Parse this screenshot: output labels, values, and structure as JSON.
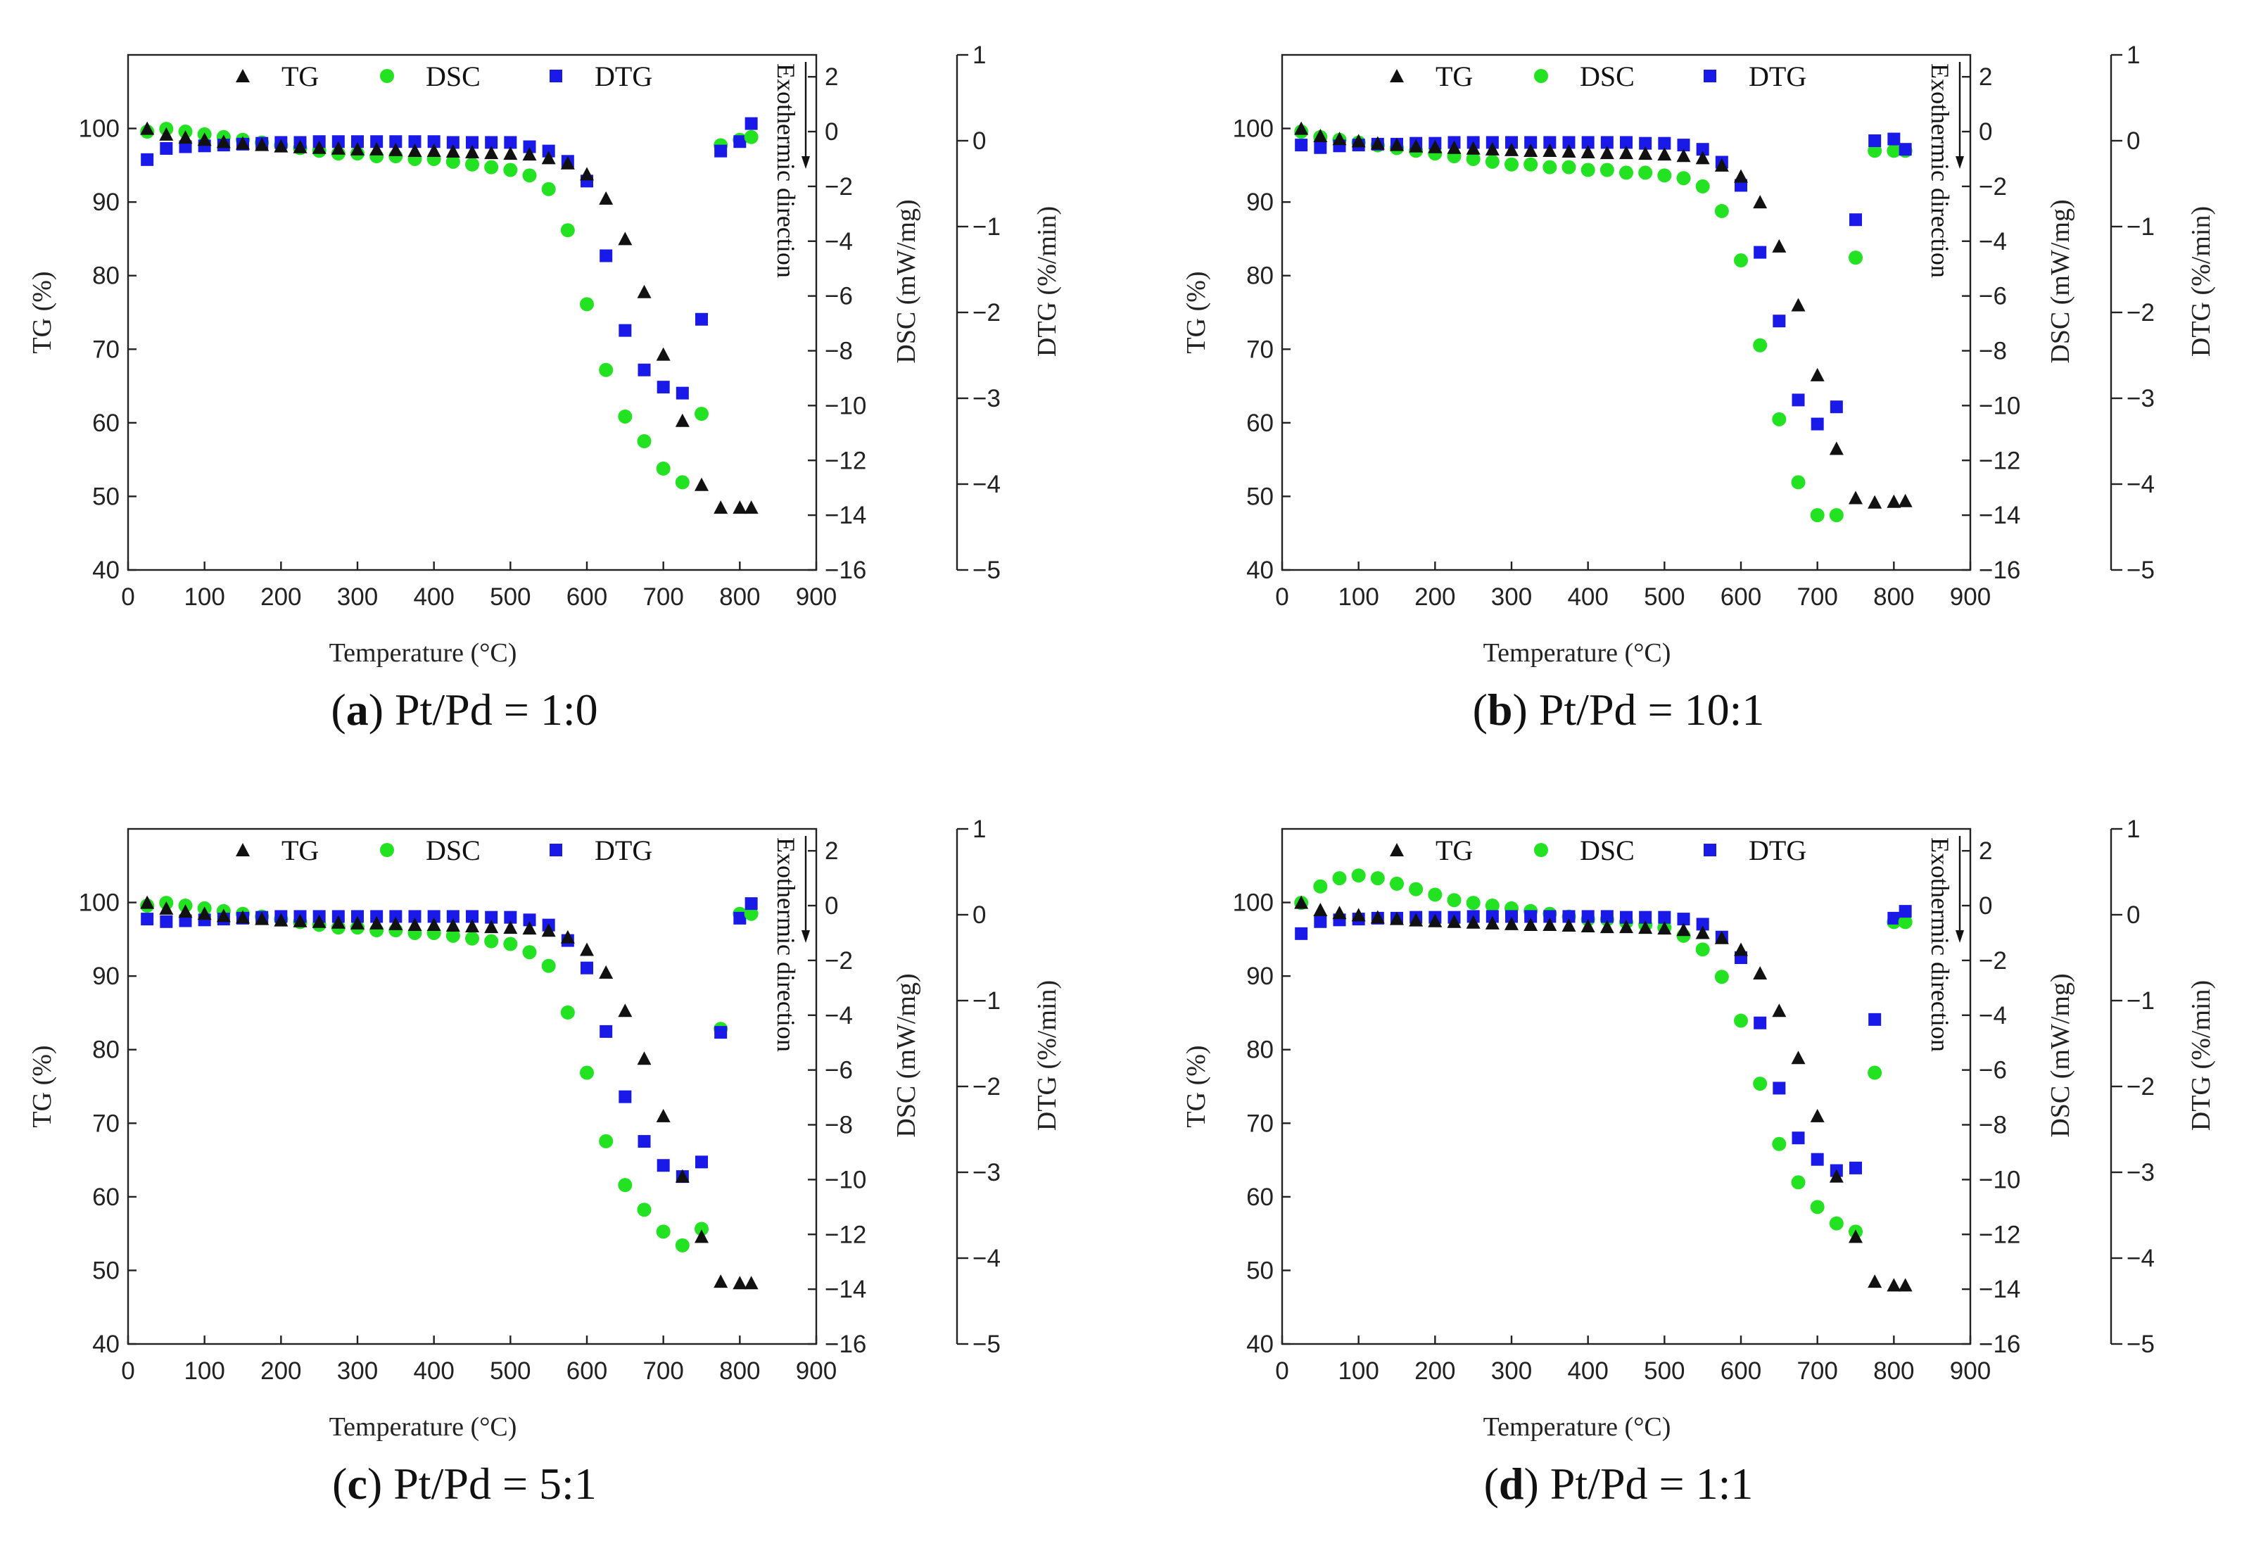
{
  "legend_labels": [
    "TG",
    "DSC",
    "DTG"
  ],
  "colors": {
    "TG": "#111111",
    "DSC": "#22e222",
    "DTG": "#1a1ae8"
  },
  "chart_data": [
    {
      "type": "scatter",
      "caption_letter": "a",
      "caption_text": " Pt/Pd = 1:0",
      "xlabel": "Temperature (°C)",
      "ylabel_left": "TG (%)",
      "ylabel_right1": "DSC (mW/mg)",
      "ylabel_right2": "DTG (%/min)",
      "annotation": "Exothermic direction",
      "xlim": [
        0,
        900
      ],
      "xticks": [
        0,
        100,
        200,
        300,
        400,
        500,
        600,
        700,
        800,
        900
      ],
      "tg_lim": [
        40,
        110
      ],
      "tg_ticks": [
        40,
        50,
        60,
        70,
        80,
        90,
        100
      ],
      "dsc_lim": [
        -16,
        2.8
      ],
      "dsc_ticks": [
        -16,
        -14,
        -12,
        -10,
        -8,
        -6,
        -4,
        -2,
        0,
        2
      ],
      "dtg_lim": [
        -5,
        1
      ],
      "dtg_ticks": [
        -5,
        -4,
        -3,
        -2,
        -1,
        0,
        1
      ],
      "x": [
        25,
        50,
        75,
        100,
        125,
        150,
        175,
        200,
        225,
        250,
        275,
        300,
        325,
        350,
        375,
        400,
        425,
        450,
        475,
        500,
        525,
        550,
        575,
        600,
        625,
        650,
        675,
        700,
        725,
        750,
        775,
        800,
        815
      ],
      "tg": [
        100,
        99.2,
        98.8,
        98.5,
        98.2,
        98,
        97.8,
        97.6,
        97.5,
        97.4,
        97.3,
        97.2,
        97.2,
        97.1,
        97,
        97,
        96.9,
        96.8,
        96.7,
        96.6,
        96.5,
        96,
        95.3,
        93.8,
        90.5,
        85,
        77.8,
        69.3,
        60.3,
        51.6,
        48.5,
        48.5,
        48.5
      ],
      "dsc": [
        0,
        0.1,
        0,
        -0.1,
        -0.2,
        -0.3,
        -0.4,
        -0.5,
        -0.6,
        -0.7,
        -0.8,
        -0.8,
        -0.9,
        -0.9,
        -1,
        -1,
        -1.1,
        -1.2,
        -1.3,
        -1.4,
        -1.6,
        -2.1,
        -3.6,
        -6.3,
        -8.7,
        -10.4,
        -11.3,
        -12.3,
        -12.8,
        -10.3,
        -0.5,
        -0.3,
        -0.2
      ],
      "dtg": [
        -0.22,
        -0.09,
        -0.07,
        -0.06,
        -0.05,
        -0.04,
        -0.03,
        -0.02,
        -0.02,
        -0.01,
        -0.01,
        -0.01,
        -0.01,
        -0.01,
        -0.01,
        -0.01,
        -0.02,
        -0.02,
        -0.02,
        -0.02,
        -0.07,
        -0.12,
        -0.24,
        -0.47,
        -1.34,
        -2.21,
        -2.67,
        -2.87,
        -2.94,
        -2.08,
        -0.12,
        -0.01,
        0.2
      ]
    },
    {
      "type": "scatter",
      "caption_letter": "b",
      "caption_text": " Pt/Pd = 10:1",
      "xlabel": "Temperature (°C)",
      "ylabel_left": "TG (%)",
      "ylabel_right1": "DSC (mW/mg)",
      "ylabel_right2": "DTG (%/min)",
      "annotation": "Exothermic direction",
      "xlim": [
        0,
        900
      ],
      "xticks": [
        0,
        100,
        200,
        300,
        400,
        500,
        600,
        700,
        800,
        900
      ],
      "tg_lim": [
        40,
        110
      ],
      "tg_ticks": [
        40,
        50,
        60,
        70,
        80,
        90,
        100
      ],
      "dsc_lim": [
        -16,
        2.8
      ],
      "dsc_ticks": [
        -16,
        -14,
        -12,
        -10,
        -8,
        -6,
        -4,
        -2,
        0,
        2
      ],
      "dtg_lim": [
        -5,
        1
      ],
      "dtg_ticks": [
        -5,
        -4,
        -3,
        -2,
        -1,
        0,
        1
      ],
      "x": [
        25,
        50,
        75,
        100,
        125,
        150,
        175,
        200,
        225,
        250,
        275,
        300,
        325,
        350,
        375,
        400,
        425,
        450,
        475,
        500,
        525,
        550,
        575,
        600,
        625,
        650,
        675,
        700,
        725,
        750,
        775,
        800,
        815
      ],
      "tg": [
        100,
        99,
        98.6,
        98.3,
        98,
        97.8,
        97.6,
        97.5,
        97.4,
        97.3,
        97.2,
        97.1,
        97,
        97,
        96.9,
        96.8,
        96.7,
        96.7,
        96.6,
        96.5,
        96.3,
        96,
        95,
        93.5,
        90,
        84,
        76,
        66.5,
        56.5,
        49.8,
        49.2,
        49.3,
        49.4
      ],
      "dsc": [
        0,
        -0.2,
        -0.3,
        -0.4,
        -0.5,
        -0.6,
        -0.7,
        -0.8,
        -0.9,
        -1,
        -1.1,
        -1.2,
        -1.2,
        -1.3,
        -1.3,
        -1.4,
        -1.4,
        -1.5,
        -1.5,
        -1.6,
        -1.7,
        -2,
        -2.9,
        -4.7,
        -7.8,
        -10.5,
        -12.8,
        -14,
        -14,
        -4.6,
        -0.7,
        -0.7,
        -0.7
      ],
      "dtg": [
        -0.05,
        -0.08,
        -0.06,
        -0.05,
        -0.04,
        -0.04,
        -0.03,
        -0.03,
        -0.02,
        -0.02,
        -0.02,
        -0.02,
        -0.02,
        -0.02,
        -0.02,
        -0.02,
        -0.02,
        -0.02,
        -0.03,
        -0.03,
        -0.05,
        -0.1,
        -0.25,
        -0.52,
        -1.3,
        -2.1,
        -3.02,
        -3.3,
        -3.1,
        -0.92,
        0,
        0.02,
        -0.1
      ]
    },
    {
      "type": "scatter",
      "caption_letter": "c",
      "caption_text": " Pt/Pd = 5:1",
      "xlabel": "Temperature (°C)",
      "ylabel_left": "TG (%)",
      "ylabel_right1": "DSC (mW/mg)",
      "ylabel_right2": "DTG (%/min)",
      "annotation": "Exothermic direction",
      "xlim": [
        0,
        900
      ],
      "xticks": [
        0,
        100,
        200,
        300,
        400,
        500,
        600,
        700,
        800,
        900
      ],
      "tg_lim": [
        40,
        110
      ],
      "tg_ticks": [
        40,
        50,
        60,
        70,
        80,
        90,
        100
      ],
      "dsc_lim": [
        -16,
        2.8
      ],
      "dsc_ticks": [
        -16,
        -14,
        -12,
        -10,
        -8,
        -6,
        -4,
        -2,
        0,
        2
      ],
      "dtg_lim": [
        -5,
        1
      ],
      "dtg_ticks": [
        -5,
        -4,
        -3,
        -2,
        -1,
        0,
        1
      ],
      "x": [
        25,
        50,
        75,
        100,
        125,
        150,
        175,
        200,
        225,
        250,
        275,
        300,
        325,
        350,
        375,
        400,
        425,
        450,
        475,
        500,
        525,
        550,
        575,
        600,
        625,
        650,
        675,
        700,
        725,
        750,
        775,
        800,
        815
      ],
      "tg": [
        100,
        99.2,
        98.8,
        98.5,
        98.2,
        98,
        97.8,
        97.6,
        97.5,
        97.4,
        97.3,
        97.2,
        97.2,
        97.1,
        97,
        97,
        96.9,
        96.8,
        96.7,
        96.6,
        96.5,
        96.2,
        95.3,
        93.6,
        90.5,
        85.3,
        78.8,
        71,
        62.8,
        54.6,
        48.5,
        48.3,
        48.3
      ],
      "dsc": [
        0,
        0.1,
        0,
        -0.1,
        -0.2,
        -0.3,
        -0.4,
        -0.5,
        -0.6,
        -0.7,
        -0.8,
        -0.8,
        -0.9,
        -0.9,
        -1,
        -1,
        -1.1,
        -1.2,
        -1.3,
        -1.4,
        -1.7,
        -2.2,
        -3.9,
        -6.1,
        -8.6,
        -10.2,
        -11.1,
        -11.9,
        -12.4,
        -11.8,
        -4.5,
        -0.3,
        -0.3
      ],
      "dtg": [
        -0.05,
        -0.08,
        -0.07,
        -0.06,
        -0.05,
        -0.04,
        -0.03,
        -0.02,
        -0.02,
        -0.02,
        -0.02,
        -0.02,
        -0.02,
        -0.02,
        -0.02,
        -0.02,
        -0.02,
        -0.02,
        -0.03,
        -0.03,
        -0.06,
        -0.12,
        -0.3,
        -0.62,
        -1.36,
        -2.12,
        -2.64,
        -2.92,
        -3.05,
        -2.88,
        -1.37,
        -0.04,
        0.13
      ]
    },
    {
      "type": "scatter",
      "caption_letter": "d",
      "caption_text": " Pt/Pd = 1:1",
      "xlabel": "Temperature (°C)",
      "ylabel_left": "TG (%)",
      "ylabel_right1": "DSC (mW/mg)",
      "ylabel_right2": "DTG (%/min)",
      "annotation": "Exothermic direction",
      "xlim": [
        0,
        900
      ],
      "xticks": [
        0,
        100,
        200,
        300,
        400,
        500,
        600,
        700,
        800,
        900
      ],
      "tg_lim": [
        40,
        110
      ],
      "tg_ticks": [
        40,
        50,
        60,
        70,
        80,
        90,
        100
      ],
      "dsc_lim": [
        -16,
        2.8
      ],
      "dsc_ticks": [
        -16,
        -14,
        -12,
        -10,
        -8,
        -6,
        -4,
        -2,
        0,
        2
      ],
      "dtg_lim": [
        -5,
        1
      ],
      "dtg_ticks": [
        -5,
        -4,
        -3,
        -2,
        -1,
        0,
        1
      ],
      "x": [
        25,
        50,
        75,
        100,
        125,
        150,
        175,
        200,
        225,
        250,
        275,
        300,
        325,
        350,
        375,
        400,
        425,
        450,
        475,
        500,
        525,
        550,
        575,
        600,
        625,
        650,
        675,
        700,
        725,
        750,
        775,
        800,
        815
      ],
      "tg": [
        100,
        99,
        98.6,
        98.3,
        98,
        97.8,
        97.6,
        97.5,
        97.4,
        97.3,
        97.2,
        97.1,
        97,
        97,
        96.9,
        96.8,
        96.7,
        96.7,
        96.6,
        96.5,
        96.3,
        95.9,
        95.2,
        93.6,
        90.4,
        85.3,
        78.9,
        71,
        62.8,
        54.6,
        48.5,
        48,
        48
      ],
      "dsc": [
        0.1,
        0.7,
        1,
        1.1,
        1,
        0.8,
        0.6,
        0.4,
        0.2,
        0.1,
        0,
        -0.1,
        -0.2,
        -0.3,
        -0.4,
        -0.5,
        -0.5,
        -0.6,
        -0.7,
        -0.8,
        -1.1,
        -1.6,
        -2.6,
        -4.2,
        -6.5,
        -8.7,
        -10.1,
        -11,
        -11.6,
        -11.9,
        -6.1,
        -0.6,
        -0.6
      ],
      "dtg": [
        -0.22,
        -0.08,
        -0.06,
        -0.05,
        -0.04,
        -0.04,
        -0.03,
        -0.03,
        -0.03,
        -0.02,
        -0.02,
        -0.02,
        -0.02,
        -0.02,
        -0.02,
        -0.02,
        -0.02,
        -0.03,
        -0.03,
        -0.03,
        -0.05,
        -0.11,
        -0.26,
        -0.5,
        -1.26,
        -2.02,
        -2.6,
        -2.85,
        -2.98,
        -2.95,
        -1.22,
        -0.04,
        0.04
      ]
    }
  ]
}
